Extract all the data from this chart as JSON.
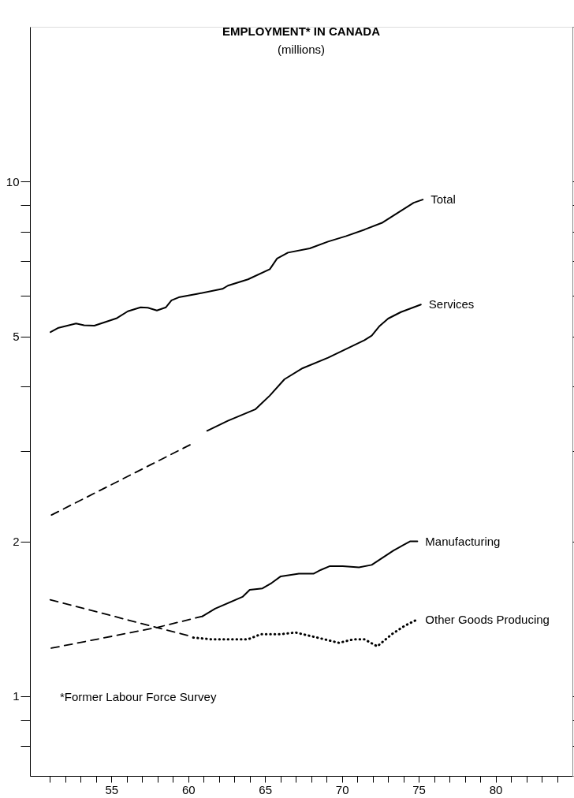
{
  "chart_data": {
    "type": "line",
    "title": "EMPLOYMENT* IN CANADA",
    "subtitle": "(millions)",
    "annotations": [
      "*Former Labour Force Survey"
    ],
    "log": "y",
    "xlim": [
      49.7,
      85
    ],
    "ylim": [
      0.7,
      20
    ],
    "xticks": [
      {
        "value": 51,
        "label": null
      },
      {
        "value": 52,
        "label": null
      },
      {
        "value": 53,
        "label": null
      },
      {
        "value": 54,
        "label": null
      },
      55,
      {
        "value": 56,
        "label": null
      },
      {
        "value": 57,
        "label": null
      },
      {
        "value": 58,
        "label": null
      },
      {
        "value": 59,
        "label": null
      },
      60,
      {
        "value": 61,
        "label": null
      },
      {
        "value": 62,
        "label": null
      },
      {
        "value": 63,
        "label": null
      },
      {
        "value": 64,
        "label": null
      },
      65,
      {
        "value": 66,
        "label": null
      },
      {
        "value": 67,
        "label": null
      },
      {
        "value": 68,
        "label": null
      },
      {
        "value": 69,
        "label": null
      },
      70,
      {
        "value": 71,
        "label": null
      },
      {
        "value": 72,
        "label": null
      },
      {
        "value": 73,
        "label": null
      },
      {
        "value": 74,
        "label": null
      },
      75,
      {
        "value": 76,
        "label": null
      },
      {
        "value": 77,
        "label": null
      },
      {
        "value": 78,
        "label": null
      },
      {
        "value": 79,
        "label": null
      },
      80,
      {
        "value": 81,
        "label": null
      },
      {
        "value": 82,
        "label": null
      },
      {
        "value": 83,
        "label": null
      },
      {
        "value": 84,
        "label": null
      }
    ],
    "yticks": [
      {
        "value": 0.8,
        "label": null
      },
      {
        "value": 0.9,
        "label": null
      },
      1,
      2,
      {
        "value": 3,
        "label": null
      },
      {
        "value": 4,
        "label": null
      },
      5,
      {
        "value": 6,
        "label": null
      },
      {
        "value": 7,
        "label": null
      },
      {
        "value": 8,
        "label": null
      },
      {
        "value": 9,
        "label": null
      },
      10
    ],
    "series": [
      {
        "name": "Total",
        "color": "#000000",
        "line_style": "solid",
        "x": [
          51.04,
          51.56,
          52.7,
          53.22,
          53.89,
          55.36,
          56.07,
          56.9,
          57.37,
          57.96,
          58.55,
          58.91,
          59.38,
          60.57,
          62.23,
          62.58,
          63.89,
          65.31,
          65.78,
          66.49,
          67.91,
          69.1,
          70.28,
          71.47,
          72.65,
          73.84,
          74.67,
          75.26
        ],
        "values": [
          5.1,
          5.2,
          5.3,
          5.26,
          5.25,
          5.43,
          5.6,
          5.7,
          5.69,
          5.62,
          5.7,
          5.88,
          5.96,
          6.05,
          6.19,
          6.28,
          6.46,
          6.76,
          7.09,
          7.28,
          7.42,
          7.65,
          7.84,
          8.07,
          8.33,
          8.78,
          9.1,
          9.23
        ]
      },
      {
        "color": "#000000",
        "line_style": "dashed",
        "x": [
          51.1,
          60.3
        ],
        "values": [
          2.25,
          3.1
        ]
      },
      {
        "name": "Services",
        "color": "#000000",
        "line_style": "solid",
        "x": [
          61.23,
          62.58,
          64.36,
          65.31,
          66.26,
          67.44,
          69.1,
          71.47,
          71.94,
          72.42,
          73.01,
          73.84,
          75.14
        ],
        "values": [
          3.28,
          3.43,
          3.61,
          3.84,
          4.13,
          4.34,
          4.55,
          4.92,
          5.02,
          5.23,
          5.42,
          5.58,
          5.77
        ]
      },
      {
        "color": "#000000",
        "line_style": "dashed",
        "x": [
          51.09,
          57.96,
          60.92
        ],
        "values": [
          1.24,
          1.36,
          1.43
        ]
      },
      {
        "name": "Manufacturing",
        "color": "#000000",
        "line_style": "solid",
        "x": [
          60.92,
          61.75,
          63.53,
          64.0,
          64.83,
          65.43,
          66.02,
          67.2,
          68.15,
          68.63,
          69.22,
          70.05,
          71.11,
          71.94,
          73.36,
          74.43,
          74.91
        ],
        "values": [
          1.43,
          1.48,
          1.56,
          1.61,
          1.62,
          1.66,
          1.71,
          1.73,
          1.73,
          1.76,
          1.79,
          1.79,
          1.78,
          1.8,
          1.92,
          2.0,
          2.0
        ]
      },
      {
        "color": "#000000",
        "line_style": "dashed",
        "x": [
          51.02,
          57.96,
          60.09
        ],
        "values": [
          1.54,
          1.36,
          1.31
        ]
      },
      {
        "name": "Other Goods Producing",
        "color": "#000000",
        "line_style": "dotted",
        "x": [
          60.33,
          61.52,
          62.7,
          63.89,
          64.72,
          66.02,
          66.97,
          67.91,
          68.86,
          69.81,
          70.76,
          71.47,
          72.3,
          73.25,
          74.08,
          74.91
        ],
        "values": [
          1.3,
          1.29,
          1.29,
          1.29,
          1.32,
          1.32,
          1.33,
          1.31,
          1.29,
          1.27,
          1.29,
          1.29,
          1.25,
          1.32,
          1.37,
          1.41
        ]
      }
    ]
  }
}
